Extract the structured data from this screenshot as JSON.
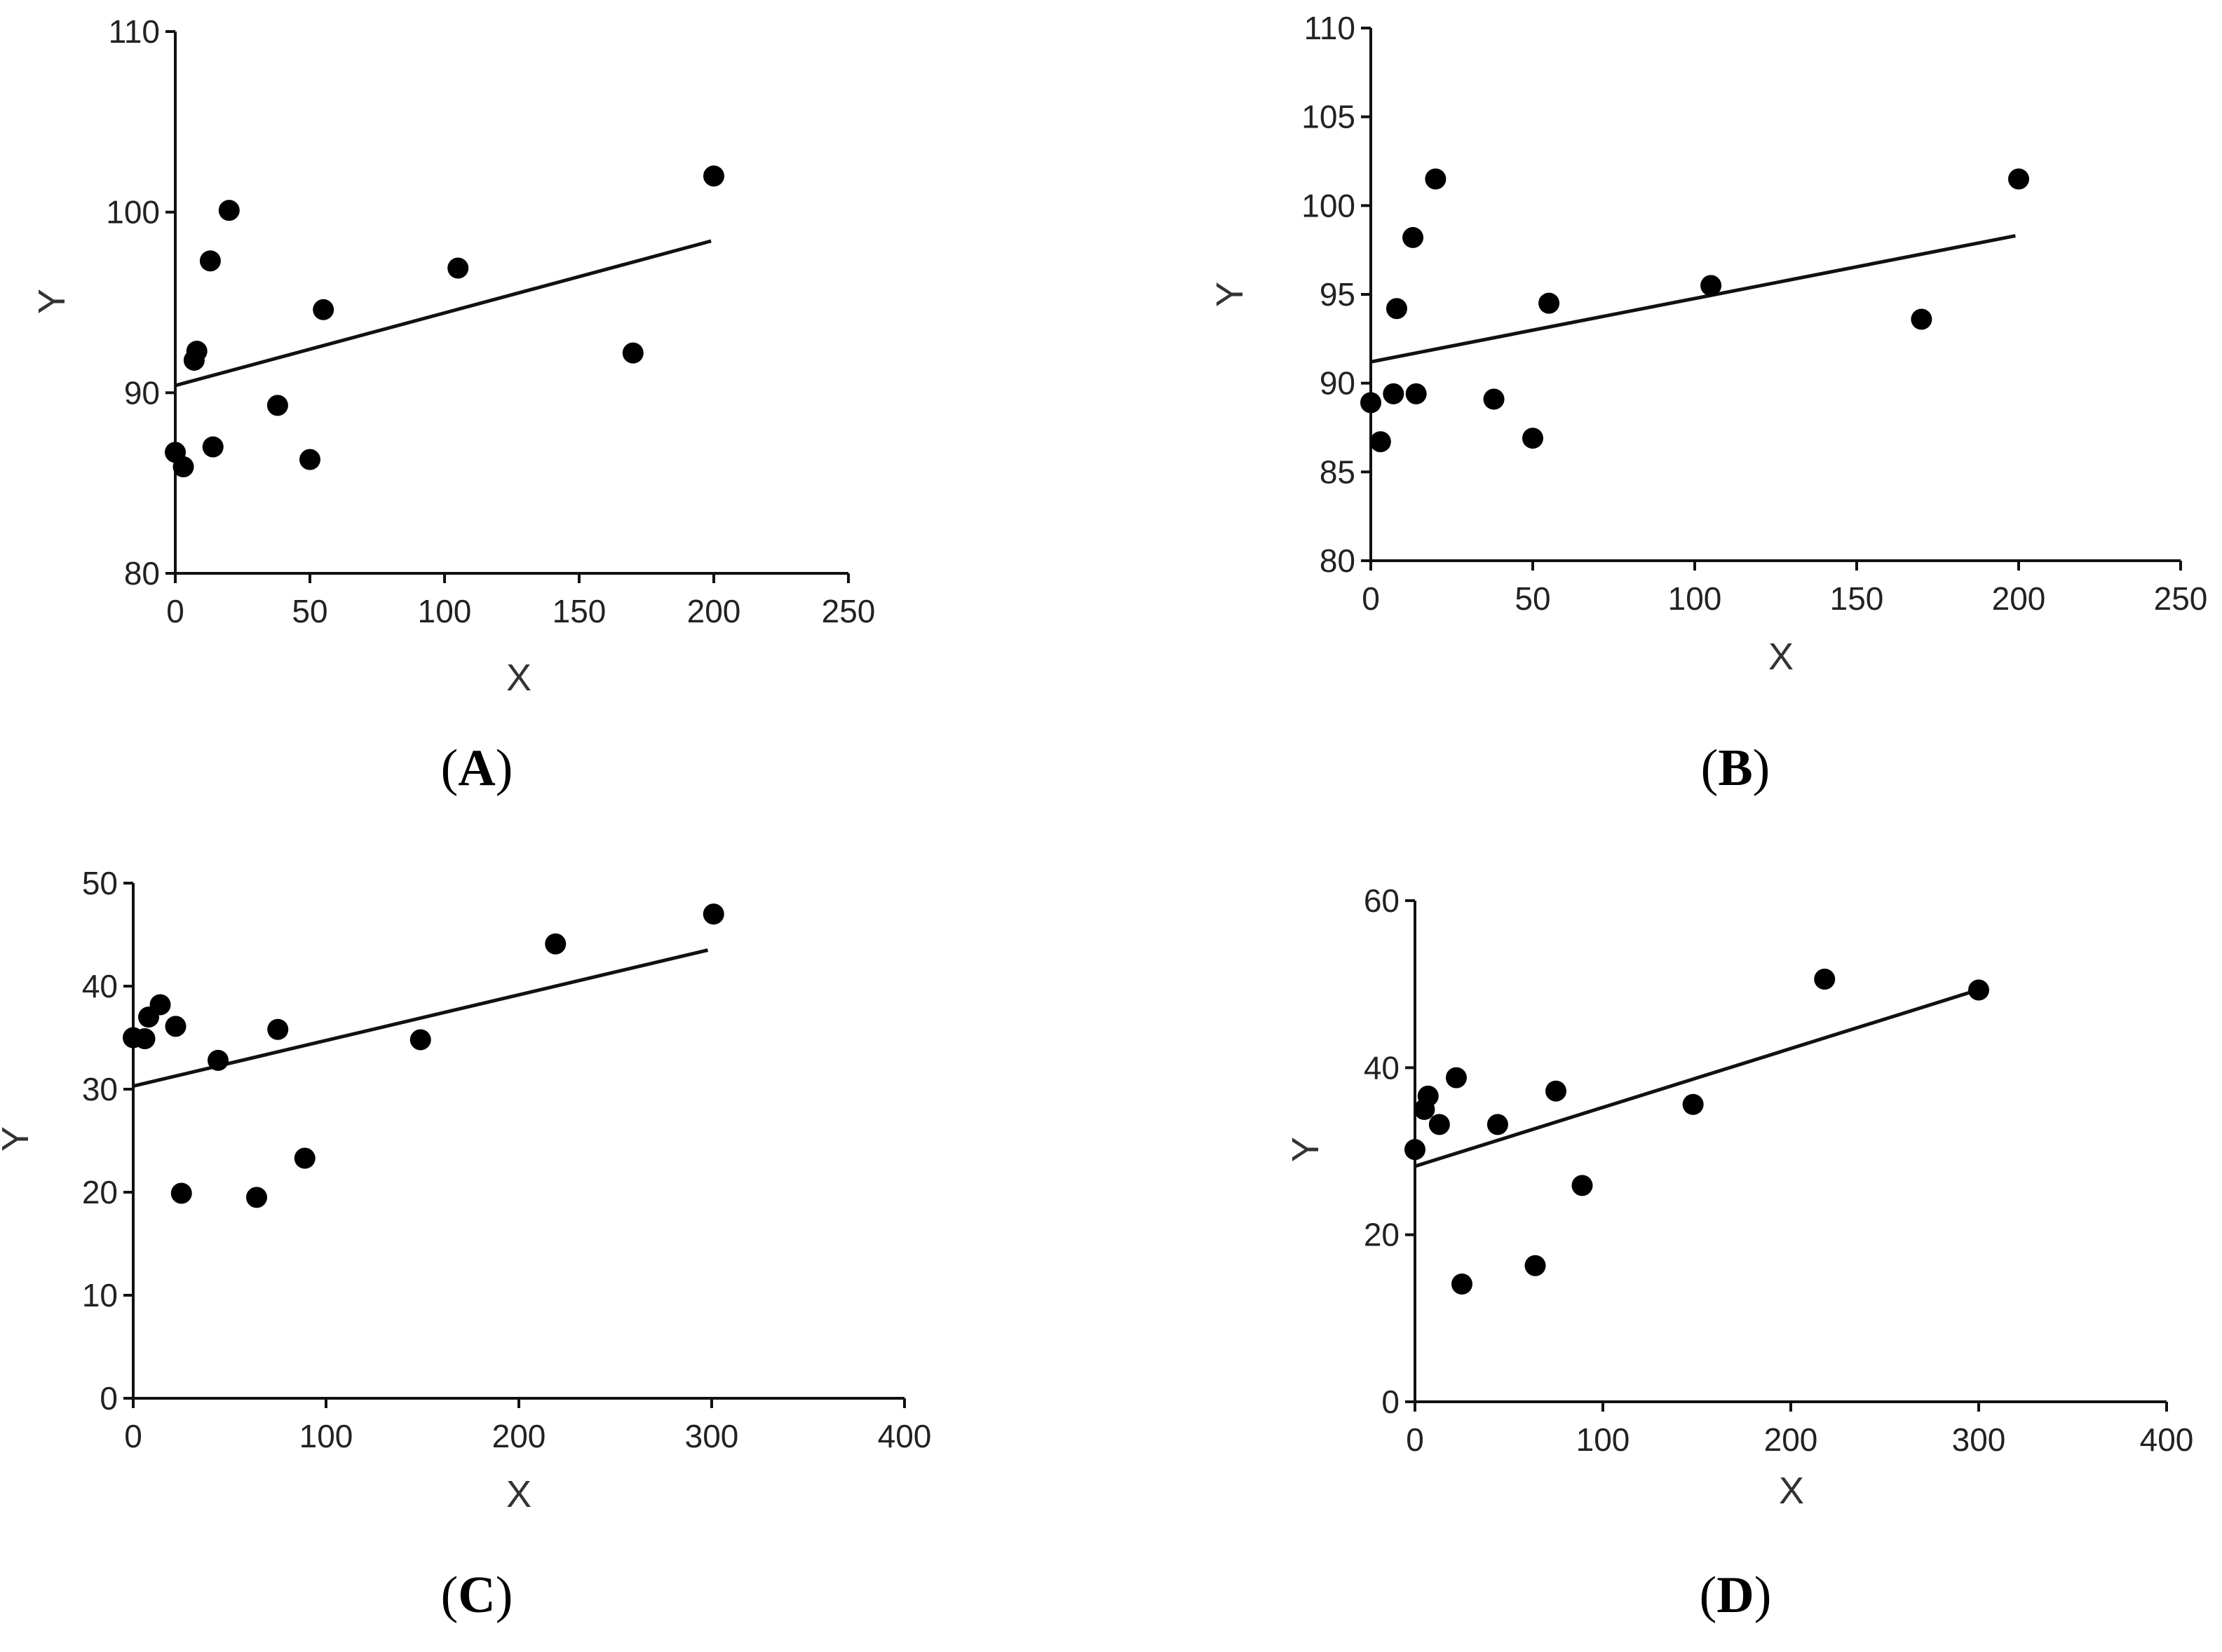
{
  "chart_data": [
    {
      "id": "A",
      "type": "scatter",
      "label_text": "A",
      "xlabel": "X",
      "ylabel": "Y",
      "xlim": [
        0,
        250
      ],
      "ylim": [
        80,
        110
      ],
      "xticks": [
        0,
        50,
        100,
        150,
        200,
        250
      ],
      "yticks": [
        80,
        90,
        100,
        110
      ],
      "points": [
        {
          "x": 0,
          "y": 86.7
        },
        {
          "x": 3,
          "y": 85.9
        },
        {
          "x": 7,
          "y": 91.8
        },
        {
          "x": 8,
          "y": 92.3
        },
        {
          "x": 13,
          "y": 97.3
        },
        {
          "x": 14,
          "y": 87.0
        },
        {
          "x": 20,
          "y": 100.1
        },
        {
          "x": 38,
          "y": 89.3
        },
        {
          "x": 50,
          "y": 86.3
        },
        {
          "x": 55,
          "y": 94.6
        },
        {
          "x": 105,
          "y": 96.9
        },
        {
          "x": 170,
          "y": 92.2
        },
        {
          "x": 200,
          "y": 102.0
        }
      ],
      "fit_line": {
        "x0": 0,
        "y0": 90.4,
        "x1": 199,
        "y1": 98.4
      }
    },
    {
      "id": "B",
      "type": "scatter",
      "label_text": "B",
      "xlabel": "X",
      "ylabel": "Y",
      "xlim": [
        0,
        250
      ],
      "ylim": [
        80,
        110
      ],
      "xticks": [
        0,
        50,
        100,
        150,
        200,
        250
      ],
      "yticks": [
        80,
        85,
        90,
        95,
        100,
        105,
        110
      ],
      "points": [
        {
          "x": 0,
          "y": 88.9
        },
        {
          "x": 3,
          "y": 86.7
        },
        {
          "x": 7,
          "y": 89.4
        },
        {
          "x": 8,
          "y": 94.2
        },
        {
          "x": 13,
          "y": 98.2
        },
        {
          "x": 14,
          "y": 89.4
        },
        {
          "x": 20,
          "y": 101.5
        },
        {
          "x": 38,
          "y": 89.1
        },
        {
          "x": 50,
          "y": 86.9
        },
        {
          "x": 55,
          "y": 94.5
        },
        {
          "x": 105,
          "y": 95.5
        },
        {
          "x": 170,
          "y": 93.6
        },
        {
          "x": 200,
          "y": 101.5
        }
      ],
      "fit_line": {
        "x0": 0,
        "y0": 91.2,
        "x1": 199,
        "y1": 98.3
      }
    },
    {
      "id": "C",
      "type": "scatter",
      "label_text": "C",
      "xlabel": "X",
      "ylabel": "Y",
      "xlim": [
        0,
        400
      ],
      "ylim": [
        0,
        50
      ],
      "xticks": [
        0,
        100,
        200,
        300,
        400
      ],
      "yticks": [
        0,
        10,
        20,
        30,
        40,
        50
      ],
      "points": [
        {
          "x": 0,
          "y": 35.0
        },
        {
          "x": 6,
          "y": 34.9
        },
        {
          "x": 8,
          "y": 37.0
        },
        {
          "x": 14,
          "y": 38.2
        },
        {
          "x": 22,
          "y": 36.1
        },
        {
          "x": 25,
          "y": 19.9
        },
        {
          "x": 44,
          "y": 32.8
        },
        {
          "x": 64,
          "y": 19.5
        },
        {
          "x": 75,
          "y": 35.8
        },
        {
          "x": 89,
          "y": 23.3
        },
        {
          "x": 149,
          "y": 34.8
        },
        {
          "x": 219,
          "y": 44.1
        },
        {
          "x": 301,
          "y": 47.0
        }
      ],
      "fit_line": {
        "x0": 0,
        "y0": 30.3,
        "x1": 298,
        "y1": 43.5
      }
    },
    {
      "id": "D",
      "type": "scatter",
      "label_text": "D",
      "xlabel": "X",
      "ylabel": "Y",
      "xlim": [
        0,
        400
      ],
      "ylim": [
        0,
        60
      ],
      "xticks": [
        0,
        100,
        200,
        300,
        400
      ],
      "yticks": [
        0,
        20,
        40,
        60
      ],
      "points": [
        {
          "x": 0,
          "y": 30.2
        },
        {
          "x": 5,
          "y": 35.0
        },
        {
          "x": 7,
          "y": 36.6
        },
        {
          "x": 13,
          "y": 33.2
        },
        {
          "x": 22,
          "y": 38.8
        },
        {
          "x": 25,
          "y": 14.1
        },
        {
          "x": 44,
          "y": 33.2
        },
        {
          "x": 64,
          "y": 16.3
        },
        {
          "x": 75,
          "y": 37.2
        },
        {
          "x": 89,
          "y": 25.9
        },
        {
          "x": 148,
          "y": 35.6
        },
        {
          "x": 218,
          "y": 50.6
        },
        {
          "x": 300,
          "y": 49.3
        }
      ],
      "fit_line": {
        "x0": 0,
        "y0": 28.2,
        "x1": 298,
        "y1": 49.2
      }
    }
  ]
}
